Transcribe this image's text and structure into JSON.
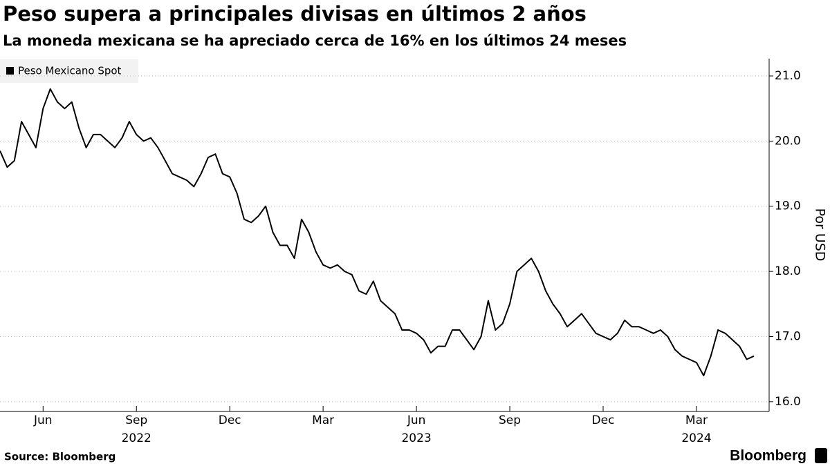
{
  "chart_data": {
    "type": "line",
    "title": "Peso supera a principales divisas en últimos 2 años",
    "subtitle": "La moneda mexicana se ha apreciado cerca de 16% en los últimos 24 meses",
    "y_label": "Por USD",
    "source": "Source: Bloomberg",
    "brand": "Bloomberg",
    "categories": [
      null,
      null,
      null,
      null,
      null,
      null,
      "Jun",
      null,
      null,
      null,
      null,
      null,
      null,
      null,
      null,
      null,
      null,
      null,
      null,
      "Sep",
      null,
      null,
      null,
      null,
      null,
      null,
      null,
      null,
      null,
      null,
      null,
      null,
      "Dec",
      null,
      null,
      null,
      null,
      null,
      null,
      null,
      null,
      null,
      null,
      null,
      null,
      "Mar",
      null,
      null,
      null,
      null,
      null,
      null,
      null,
      null,
      null,
      null,
      null,
      null,
      "Jun",
      null,
      null,
      null,
      null,
      null,
      null,
      null,
      null,
      null,
      null,
      null,
      null,
      "Sep",
      null,
      null,
      null,
      null,
      null,
      null,
      null,
      null,
      null,
      null,
      null,
      null,
      "Dec",
      null,
      null,
      null,
      null,
      null,
      null,
      null,
      null,
      null,
      null,
      null,
      null,
      "Mar",
      null,
      null,
      null,
      null,
      null,
      null,
      null,
      null
    ],
    "years": [
      "2022",
      "2023",
      "2024"
    ],
    "series": [
      {
        "name": "Peso Mexicano Spot",
        "color": "#000000",
        "values": [
          19.85,
          19.6,
          19.7,
          20.3,
          20.1,
          19.9,
          20.5,
          20.8,
          20.6,
          20.5,
          20.6,
          20.2,
          19.9,
          20.1,
          20.1,
          20.0,
          19.9,
          20.05,
          20.3,
          20.1,
          20.0,
          20.05,
          19.9,
          19.7,
          19.5,
          19.45,
          19.4,
          19.3,
          19.5,
          19.75,
          19.8,
          19.5,
          19.45,
          19.2,
          18.8,
          18.75,
          18.85,
          19.0,
          18.6,
          18.4,
          18.4,
          18.2,
          18.8,
          18.6,
          18.3,
          18.1,
          18.05,
          18.1,
          18.0,
          17.95,
          17.7,
          17.65,
          17.85,
          17.55,
          17.45,
          17.35,
          17.1,
          17.1,
          17.05,
          16.95,
          16.75,
          16.85,
          16.85,
          17.1,
          17.1,
          16.95,
          16.8,
          17.0,
          17.55,
          17.1,
          17.2,
          17.5,
          18.0,
          18.1,
          18.2,
          18.0,
          17.7,
          17.5,
          17.35,
          17.15,
          17.25,
          17.35,
          17.2,
          17.05,
          17.0,
          16.95,
          17.05,
          17.25,
          17.15,
          17.15,
          17.1,
          17.05,
          17.1,
          17.0,
          16.8,
          16.7,
          16.65,
          16.6,
          16.4,
          16.7,
          17.1,
          17.05,
          16.95,
          16.85,
          16.65,
          16.7
        ]
      }
    ],
    "ylim": [
      15.85,
      21.265
    ],
    "yticks": [
      {
        "value": 16,
        "label": "16.0"
      },
      {
        "value": 17,
        "label": "17.0"
      },
      {
        "value": 18,
        "label": "18.0"
      },
      {
        "value": 19,
        "label": "19.0"
      },
      {
        "value": 20,
        "label": "20.0"
      },
      {
        "value": 21,
        "label": "21.0"
      }
    ],
    "grid": true,
    "legend": "top-left"
  }
}
